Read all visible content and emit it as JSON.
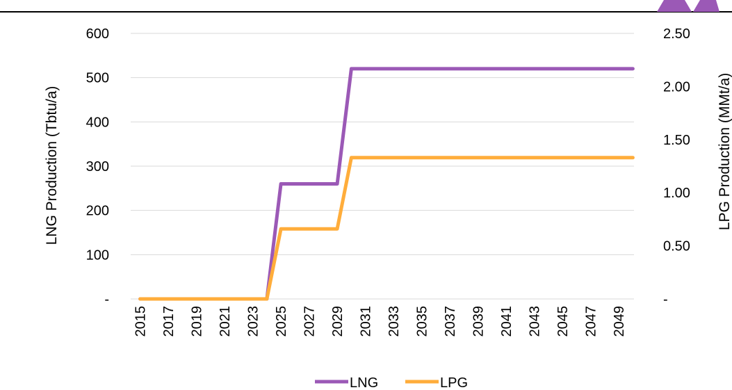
{
  "chart_data": {
    "type": "line",
    "x": [
      2015,
      2016,
      2017,
      2018,
      2019,
      2020,
      2021,
      2022,
      2023,
      2024,
      2025,
      2026,
      2027,
      2028,
      2029,
      2030,
      2031,
      2032,
      2033,
      2034,
      2035,
      2036,
      2037,
      2038,
      2039,
      2040,
      2041,
      2042,
      2043,
      2044,
      2045,
      2046,
      2047,
      2048,
      2049,
      2050
    ],
    "x_tick_labels": [
      "2015",
      "2017",
      "2019",
      "2021",
      "2023",
      "2025",
      "2027",
      "2029",
      "2031",
      "2033",
      "2035",
      "2037",
      "2039",
      "2041",
      "2043",
      "2045",
      "2047",
      "2049"
    ],
    "series": [
      {
        "name": "LNG",
        "axis": "left",
        "color": "#9b59b6",
        "values": [
          0,
          0,
          0,
          0,
          0,
          0,
          0,
          0,
          0,
          0,
          260,
          260,
          260,
          260,
          260,
          520,
          520,
          520,
          520,
          520,
          520,
          520,
          520,
          520,
          520,
          520,
          520,
          520,
          520,
          520,
          520,
          520,
          520,
          520,
          520,
          520
        ]
      },
      {
        "name": "LPG",
        "axis": "right",
        "color": "#ffad3b",
        "values": [
          0,
          0,
          0,
          0,
          0,
          0,
          0,
          0,
          0,
          0,
          0.66,
          0.66,
          0.66,
          0.66,
          0.66,
          1.33,
          1.33,
          1.33,
          1.33,
          1.33,
          1.33,
          1.33,
          1.33,
          1.33,
          1.33,
          1.33,
          1.33,
          1.33,
          1.33,
          1.33,
          1.33,
          1.33,
          1.33,
          1.33,
          1.33,
          1.33
        ]
      }
    ],
    "ylabel": "LNG Production (Tbtu/a)",
    "ylim": [
      0,
      600
    ],
    "y_tick_labels": [
      "-",
      "100",
      "200",
      "300",
      "400",
      "500",
      "600"
    ],
    "y2label": "LPG Production (MMt/a)",
    "y2lim": [
      0,
      2.5
    ],
    "y2_tick_labels": [
      "-",
      "0.50",
      "1.00",
      "1.50",
      "2.00",
      "2.50"
    ],
    "grid": true,
    "legend_position": "bottom"
  },
  "colors": {
    "accent_purple": "#9b59b6",
    "rule": "#000000",
    "grid": "#d9d9d9"
  }
}
